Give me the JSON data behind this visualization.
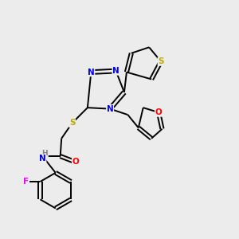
{
  "bg_color": "#ececec",
  "atom_colors": {
    "N": "#0000ee",
    "S": "#bbaa00",
    "O": "#ff0000",
    "F": "#ff00ff",
    "C": "#000000",
    "H": "#808080"
  },
  "bond_color": "#000000",
  "lw": 1.4,
  "fs": 7.5
}
